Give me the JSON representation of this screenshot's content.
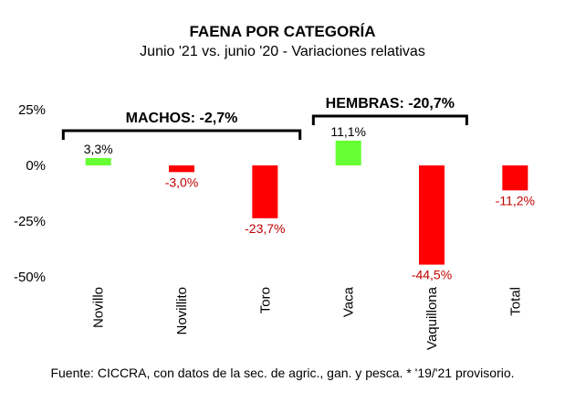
{
  "chart_data": {
    "type": "bar",
    "title": "FAENA POR CATEGORÍA",
    "subtitle": "Junio '21 vs. junio '20 - Variaciones relativas",
    "categories": [
      "Novillo",
      "Novillito",
      "Toro",
      "Vaca",
      "Vaquillona",
      "Total"
    ],
    "values": [
      3.3,
      -3.0,
      -23.7,
      11.1,
      -44.5,
      -11.2
    ],
    "value_labels": [
      "3,3%",
      "-3,0%",
      "-23,7%",
      "11,1%",
      "-44,5%",
      "-11,2%"
    ],
    "y_ticks": [
      25,
      0,
      -25,
      -50
    ],
    "y_tick_labels": [
      "25%",
      "0%",
      "-25%",
      "-50%"
    ],
    "ylim": [
      -50,
      25
    ],
    "xlabel": "",
    "ylabel": "",
    "grid": false,
    "colors": {
      "positive": "#66ff33",
      "negative": "#ff0000",
      "negative_label": "#c00000"
    },
    "groups": [
      {
        "label": "MACHOS: -2,7%",
        "categories": [
          "Novillo",
          "Novillito",
          "Toro"
        ]
      },
      {
        "label": "HEMBRAS: -20,7%",
        "categories": [
          "Vaca",
          "Vaquillona"
        ]
      }
    ],
    "source": "Fuente: CICCRA, con datos de la sec. de agric., gan. y pesca. * '19/'21 provisorio."
  }
}
